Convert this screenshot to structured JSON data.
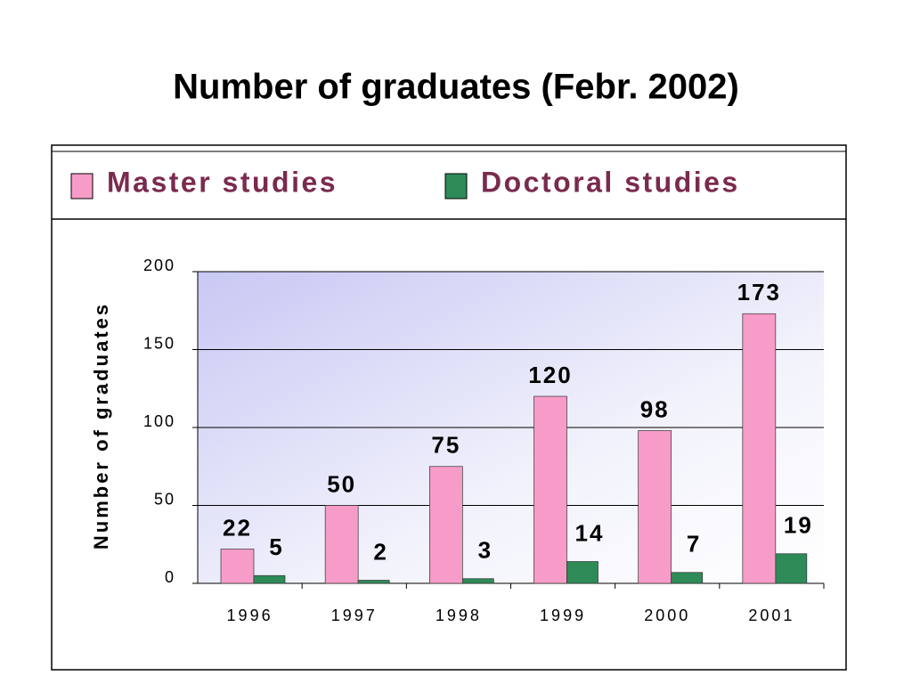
{
  "chart_data": {
    "type": "bar",
    "title": "Number of graduates (Febr. 2002)",
    "y_label": "Number of graduates",
    "categories": [
      "1996",
      "1997",
      "1998",
      "1999",
      "2000",
      "2001"
    ],
    "series": [
      {
        "name": "Master studies",
        "color": "#f79cc8",
        "values": [
          22,
          50,
          75,
          120,
          98,
          173
        ]
      },
      {
        "name": "Doctoral studies",
        "color": "#2e8b57",
        "values": [
          5,
          2,
          3,
          14,
          7,
          19
        ]
      }
    ],
    "ylim": [
      0,
      200
    ],
    "yticks": [
      0,
      50,
      100,
      150,
      200
    ],
    "grid": true
  }
}
